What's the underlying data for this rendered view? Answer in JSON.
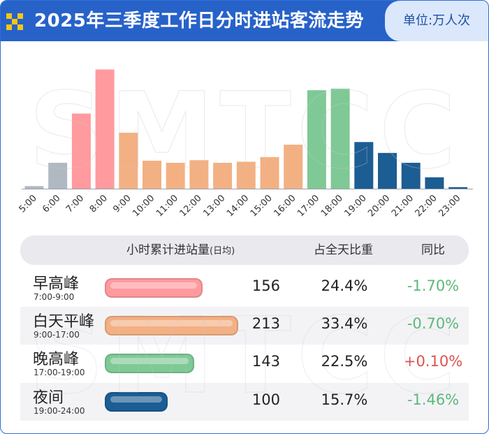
{
  "header": {
    "title": "2025年三季度工作日分时进站客流走势",
    "unit": "单位:万人次"
  },
  "watermark": "SMTCC",
  "colors": {
    "header_bg": "#2762c9",
    "early": "#ff9a9e",
    "day": "#f3b083",
    "late": "#7fc996",
    "night": "#1c5d93",
    "pre": "#b0b8c1",
    "yoy_up": "#d9534f",
    "yoy_down": "#5cb87a"
  },
  "chart_data": {
    "type": "bar",
    "categories": [
      "5:00",
      "6:00",
      "7:00",
      "8:00",
      "9:00",
      "10:00",
      "11:00",
      "12:00",
      "13:00",
      "14:00",
      "15:00",
      "16:00",
      "17:00",
      "18:00",
      "19:00",
      "20:00",
      "21:00",
      "22:00",
      "23:00"
    ],
    "values": [
      0.5,
      5,
      14.5,
      23,
      10.8,
      5.4,
      5,
      5.5,
      5,
      5.2,
      6.1,
      8.5,
      19,
      19.3,
      9,
      6.9,
      5,
      2.2,
      0.3
    ],
    "groups": [
      "pre",
      "pre",
      "early",
      "early",
      "day",
      "day",
      "day",
      "day",
      "day",
      "day",
      "day",
      "day",
      "late",
      "late",
      "night",
      "night",
      "night",
      "night",
      "night"
    ],
    "title": "2025年三季度工作日分时进站客流走势",
    "ylim": [
      0,
      24
    ],
    "grid": false,
    "legend": "none"
  },
  "table": {
    "columns": {
      "volume": "小时累计进站量",
      "volume_note": "(日均)",
      "share": "占全天比重",
      "yoy": "同比"
    },
    "rows": [
      {
        "name": "早高峰",
        "time": "7:00-9:00",
        "value": "156",
        "share": "24.4%",
        "yoy": "-1.70%",
        "group": "early",
        "trend": "down",
        "amount": 156
      },
      {
        "name": "白天平峰",
        "time": "9:00-17:00",
        "value": "213",
        "share": "33.4%",
        "yoy": "-0.70%",
        "group": "day",
        "trend": "down",
        "amount": 213
      },
      {
        "name": "晚高峰",
        "time": "17:00-19:00",
        "value": "143",
        "share": "22.5%",
        "yoy": "+0.10%",
        "group": "late",
        "trend": "up",
        "amount": 143
      },
      {
        "name": "夜间",
        "time": "19:00-24:00",
        "value": "100",
        "share": "15.7%",
        "yoy": "-1.46%",
        "group": "night",
        "trend": "down",
        "amount": 100
      }
    ]
  }
}
